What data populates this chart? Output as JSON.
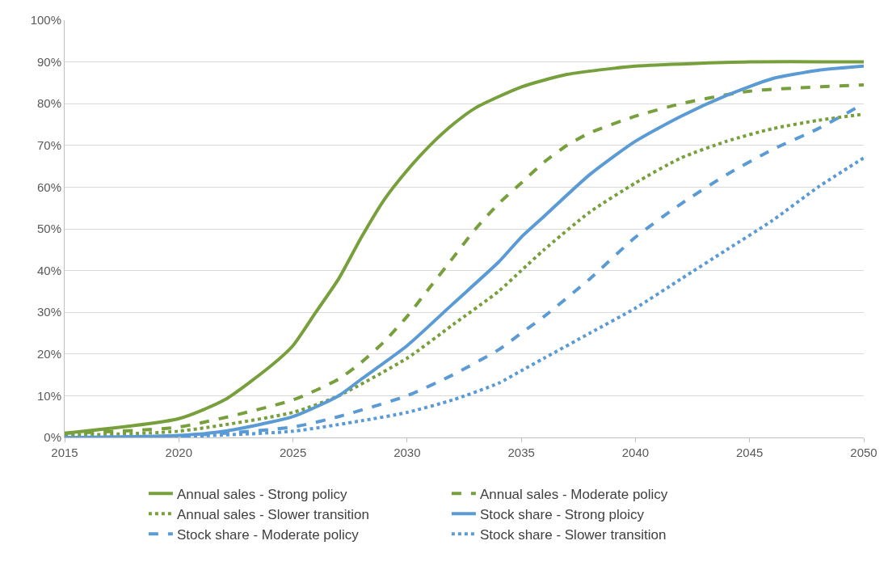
{
  "chart_data": {
    "type": "line",
    "xlim": [
      2015,
      2050
    ],
    "xticks": [
      2015,
      2020,
      2025,
      2030,
      2035,
      2040,
      2045,
      2050
    ],
    "ylim": [
      0,
      100
    ],
    "yticks": [
      {
        "value": 0,
        "label": "0%"
      },
      {
        "value": 10,
        "label": "10%"
      },
      {
        "value": 20,
        "label": "20%"
      },
      {
        "value": 30,
        "label": "30%"
      },
      {
        "value": 40,
        "label": "40%"
      },
      {
        "value": 50,
        "label": "50%"
      },
      {
        "value": 60,
        "label": "60%"
      },
      {
        "value": 70,
        "label": "70%"
      },
      {
        "value": 80,
        "label": "80%"
      },
      {
        "value": 90,
        "label": "90%"
      },
      {
        "value": 100,
        "label": "100%"
      }
    ],
    "grid": "y",
    "legend": "bottom",
    "marker": "none",
    "series": [
      {
        "name": "Annual sales - Strong policy",
        "color": "#77a03c",
        "line_style": "solid",
        "x": [
          2015,
          2020,
          2022,
          2024,
          2025,
          2026,
          2027,
          2028,
          2029,
          2030,
          2031,
          2032,
          2033,
          2035,
          2037,
          2040,
          2045,
          2050
        ],
        "values": [
          1,
          4.5,
          9,
          17,
          22,
          30,
          38,
          48,
          57,
          64,
          70,
          75,
          79,
          84,
          87,
          89,
          90,
          90
        ]
      },
      {
        "name": "Annual sales - Moderate policy",
        "color": "#77a03c",
        "line_style": "dashed",
        "x": [
          2015,
          2020,
          2025,
          2027,
          2028,
          2029,
          2030,
          2031,
          2032,
          2033,
          2034,
          2035,
          2036,
          2037,
          2038,
          2040,
          2042,
          2045,
          2050
        ],
        "values": [
          1,
          2.5,
          9,
          14,
          18,
          23,
          29,
          36,
          43,
          50,
          56,
          61,
          66,
          70,
          73,
          77,
          80,
          83,
          84.5
        ]
      },
      {
        "name": "Annual sales - Slower transition",
        "color": "#77a03c",
        "line_style": "dotted",
        "x": [
          2015,
          2020,
          2025,
          2027,
          2030,
          2032,
          2034,
          2035,
          2036,
          2038,
          2040,
          2042,
          2044,
          2046,
          2048,
          2050
        ],
        "values": [
          0.5,
          1.5,
          6,
          10,
          19,
          27,
          35,
          40,
          45,
          54,
          61,
          67,
          71,
          74,
          76,
          77.5
        ]
      },
      {
        "name": "Stock share - Strong ploicy",
        "color": "#5b9bd5",
        "line_style": "solid",
        "x": [
          2015,
          2020,
          2022,
          2025,
          2027,
          2028,
          2030,
          2032,
          2034,
          2035,
          2036,
          2038,
          2040,
          2042,
          2044,
          2046,
          2048,
          2050
        ],
        "values": [
          0,
          0.5,
          1.5,
          5,
          10,
          14,
          22,
          32,
          42,
          48,
          53,
          63,
          71,
          77,
          82,
          86,
          88,
          89
        ]
      },
      {
        "name": "Stock share - Moderate policy",
        "color": "#5b9bd5",
        "line_style": "dashed",
        "x": [
          2015,
          2020,
          2025,
          2027,
          2030,
          2032,
          2034,
          2035,
          2036,
          2038,
          2040,
          2042,
          2044,
          2046,
          2048,
          2050
        ],
        "values": [
          0,
          0.3,
          2.5,
          5,
          10,
          15,
          21,
          25,
          29,
          38,
          48,
          56,
          63,
          69,
          74,
          80
        ]
      },
      {
        "name": "Stock share - Slower transition",
        "color": "#5b9bd5",
        "line_style": "dotted",
        "x": [
          2015,
          2020,
          2025,
          2028,
          2030,
          2032,
          2034,
          2035,
          2036,
          2038,
          2040,
          2042,
          2044,
          2046,
          2048,
          2050
        ],
        "values": [
          0,
          0.2,
          1.5,
          4,
          6,
          9,
          13,
          16,
          19,
          25,
          31,
          38,
          45,
          52,
          60,
          67
        ]
      }
    ]
  }
}
